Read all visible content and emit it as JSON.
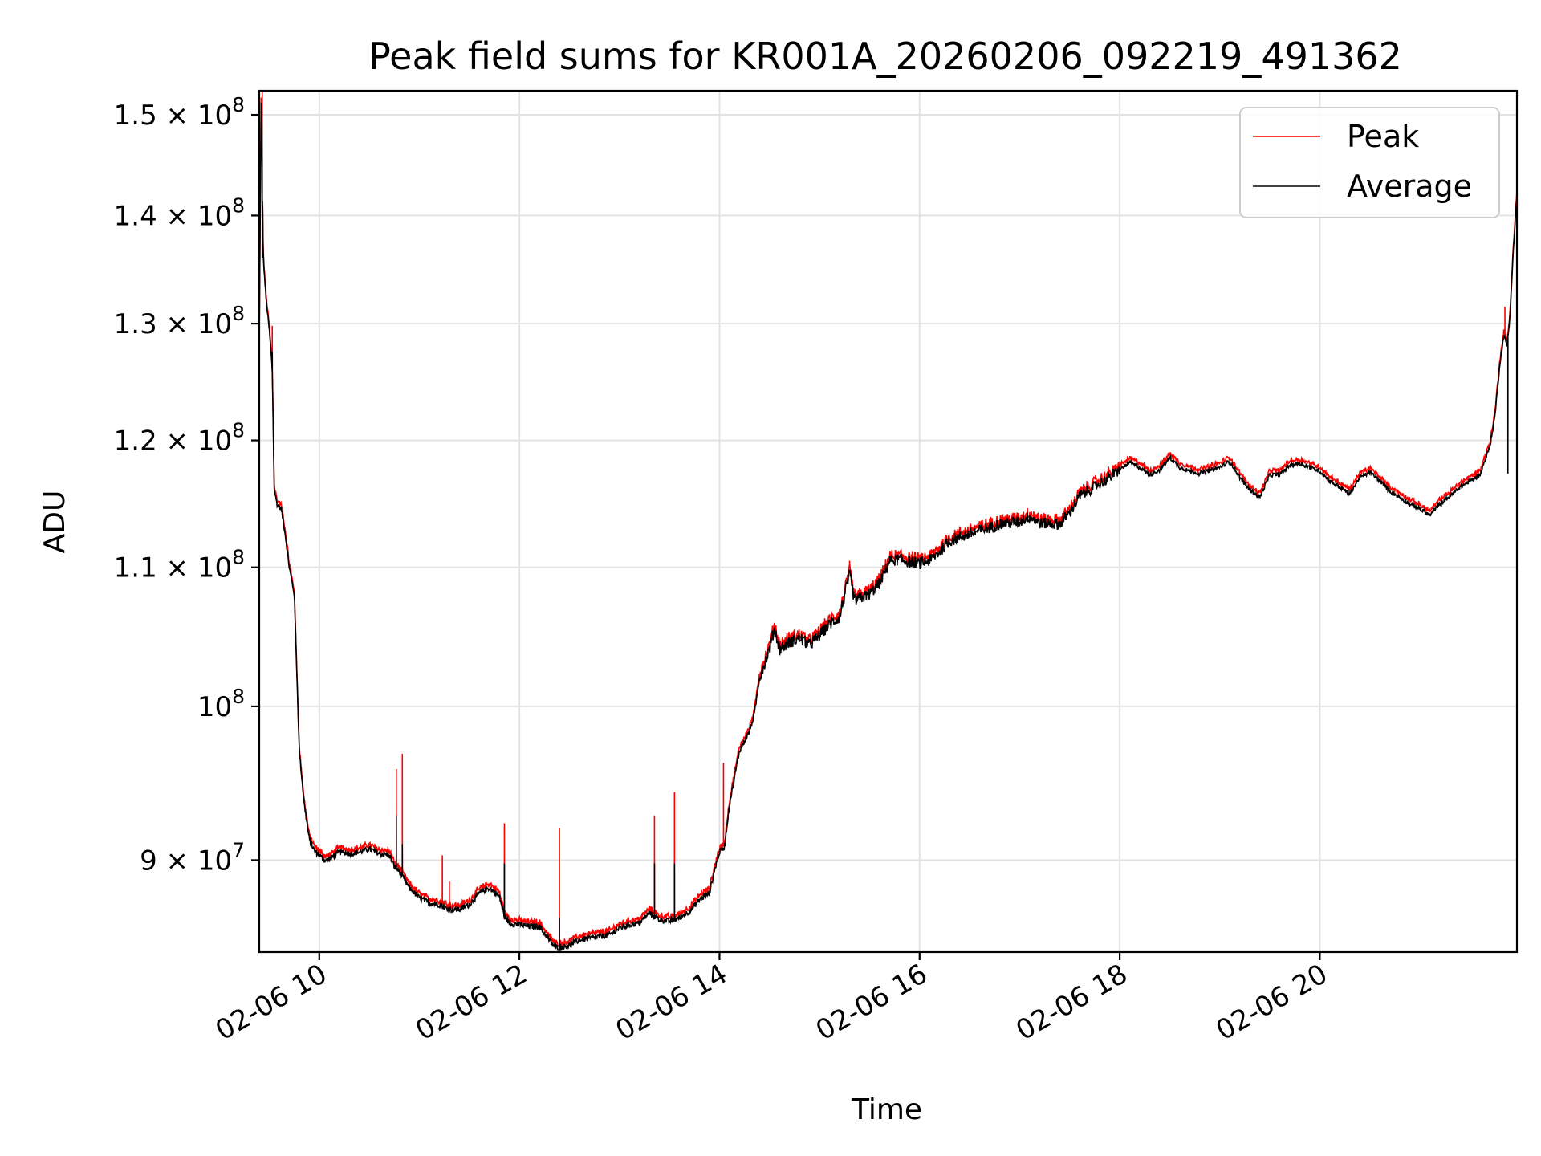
{
  "chart_data": {
    "type": "line",
    "title": "Peak field sums for KR001A_20260206_092219_491362",
    "xlabel": "Time",
    "ylabel": "ADU",
    "yscale": "log",
    "xlim": [
      9.4,
      21.97
    ],
    "ylim": [
      84500000,
      152500000
    ],
    "grid": true,
    "legend_position": "top-right",
    "x_ticks": [
      {
        "value": 10,
        "label": "02-06 10"
      },
      {
        "value": 12,
        "label": "02-06 12"
      },
      {
        "value": 14,
        "label": "02-06 14"
      },
      {
        "value": 16,
        "label": "02-06 16"
      },
      {
        "value": 18,
        "label": "02-06 18"
      },
      {
        "value": 20,
        "label": "02-06 20"
      }
    ],
    "y_ticks": [
      {
        "value": 90000000,
        "mantissa": "9",
        "times": "×",
        "base": "10",
        "exp": "7"
      },
      {
        "value": 100000000,
        "mantissa": "",
        "times": "",
        "base": "10",
        "exp": "8"
      },
      {
        "value": 110000000,
        "mantissa": "1.1",
        "times": "×",
        "base": "10",
        "exp": "8"
      },
      {
        "value": 120000000,
        "mantissa": "1.2",
        "times": "×",
        "base": "10",
        "exp": "8"
      },
      {
        "value": 130000000,
        "mantissa": "1.3",
        "times": "×",
        "base": "10",
        "exp": "8"
      },
      {
        "value": 140000000,
        "mantissa": "1.4",
        "times": "×",
        "base": "10",
        "exp": "8"
      },
      {
        "value": 150000000,
        "mantissa": "1.5",
        "times": "×",
        "base": "10",
        "exp": "8"
      }
    ],
    "series": [
      {
        "name": "Peak",
        "color": "#ff0000"
      },
      {
        "name": "Average",
        "color": "#000000"
      }
    ],
    "base_points": [
      [
        9.4,
        128.0
      ],
      [
        9.42,
        152.0
      ],
      [
        9.44,
        136.0
      ],
      [
        9.47,
        132.0
      ],
      [
        9.5,
        129.5
      ],
      [
        9.53,
        126.0
      ],
      [
        9.55,
        116.0
      ],
      [
        9.58,
        114.8
      ],
      [
        9.62,
        114.5
      ],
      [
        9.66,
        112.5
      ],
      [
        9.7,
        110.0
      ],
      [
        9.75,
        108.0
      ],
      [
        9.8,
        97.0
      ],
      [
        9.85,
        93.5
      ],
      [
        9.9,
        91.3
      ],
      [
        9.95,
        90.6
      ],
      [
        10.0,
        90.3
      ],
      [
        10.05,
        90.0
      ],
      [
        10.1,
        90.05
      ],
      [
        10.2,
        90.5
      ],
      [
        10.3,
        90.4
      ],
      [
        10.4,
        90.5
      ],
      [
        10.5,
        90.7
      ],
      [
        10.6,
        90.4
      ],
      [
        10.7,
        90.3
      ],
      [
        10.75,
        89.6
      ],
      [
        10.8,
        89.3
      ],
      [
        10.9,
        88.3
      ],
      [
        11.0,
        87.7
      ],
      [
        11.1,
        87.4
      ],
      [
        11.2,
        87.3
      ],
      [
        11.3,
        87.0
      ],
      [
        11.4,
        87.0
      ],
      [
        11.5,
        87.3
      ],
      [
        11.6,
        88.0
      ],
      [
        11.7,
        88.3
      ],
      [
        11.8,
        87.8
      ],
      [
        11.85,
        86.6
      ],
      [
        11.9,
        86.2
      ],
      [
        12.0,
        86.1
      ],
      [
        12.1,
        86.0
      ],
      [
        12.2,
        86.0
      ],
      [
        12.3,
        85.2
      ],
      [
        12.35,
        84.8
      ],
      [
        12.4,
        84.75
      ],
      [
        12.5,
        84.9
      ],
      [
        12.6,
        85.2
      ],
      [
        12.7,
        85.3
      ],
      [
        12.8,
        85.4
      ],
      [
        12.9,
        85.5
      ],
      [
        13.0,
        85.9
      ],
      [
        13.1,
        86.1
      ],
      [
        13.2,
        86.2
      ],
      [
        13.3,
        86.8
      ],
      [
        13.4,
        86.4
      ],
      [
        13.5,
        86.3
      ],
      [
        13.6,
        86.5
      ],
      [
        13.7,
        86.9
      ],
      [
        13.8,
        87.6
      ],
      [
        13.9,
        88.0
      ],
      [
        13.96,
        89.6
      ],
      [
        14.0,
        90.5
      ],
      [
        14.05,
        90.8
      ],
      [
        14.1,
        93.5
      ],
      [
        14.2,
        97.0
      ],
      [
        14.3,
        98.3
      ],
      [
        14.35,
        99.5
      ],
      [
        14.4,
        102.0
      ],
      [
        14.5,
        104.0
      ],
      [
        14.55,
        105.5
      ],
      [
        14.6,
        104.0
      ],
      [
        14.7,
        104.5
      ],
      [
        14.8,
        104.8
      ],
      [
        14.9,
        104.3
      ],
      [
        15.0,
        105.0
      ],
      [
        15.1,
        105.8
      ],
      [
        15.2,
        106.3
      ],
      [
        15.3,
        109.5
      ],
      [
        15.35,
        107.5
      ],
      [
        15.5,
        108.0
      ],
      [
        15.6,
        108.8
      ],
      [
        15.7,
        110.5
      ],
      [
        15.8,
        110.6
      ],
      [
        15.9,
        110.4
      ],
      [
        16.0,
        110.3
      ],
      [
        16.1,
        110.5
      ],
      [
        16.2,
        111.2
      ],
      [
        16.3,
        112.0
      ],
      [
        16.4,
        112.3
      ],
      [
        16.6,
        112.8
      ],
      [
        16.8,
        113.3
      ],
      [
        17.0,
        113.5
      ],
      [
        17.1,
        113.9
      ],
      [
        17.2,
        113.4
      ],
      [
        17.4,
        113.3
      ],
      [
        17.5,
        114.2
      ],
      [
        17.6,
        115.5
      ],
      [
        17.7,
        116.0
      ],
      [
        17.8,
        116.5
      ],
      [
        17.9,
        117.0
      ],
      [
        18.0,
        117.6
      ],
      [
        18.1,
        118.2
      ],
      [
        18.2,
        117.8
      ],
      [
        18.3,
        117.2
      ],
      [
        18.4,
        117.6
      ],
      [
        18.5,
        118.6
      ],
      [
        18.6,
        117.8
      ],
      [
        18.7,
        117.5
      ],
      [
        18.8,
        117.3
      ],
      [
        19.0,
        117.8
      ],
      [
        19.1,
        118.3
      ],
      [
        19.2,
        117.0
      ],
      [
        19.3,
        116.0
      ],
      [
        19.4,
        115.4
      ],
      [
        19.5,
        117.2
      ],
      [
        19.6,
        117.2
      ],
      [
        19.7,
        118.0
      ],
      [
        19.8,
        118.1
      ],
      [
        20.0,
        117.5
      ],
      [
        20.1,
        116.7
      ],
      [
        20.2,
        116.2
      ],
      [
        20.3,
        115.7
      ],
      [
        20.4,
        117.0
      ],
      [
        20.5,
        117.4
      ],
      [
        20.6,
        116.7
      ],
      [
        20.7,
        115.9
      ],
      [
        20.8,
        115.4
      ],
      [
        20.9,
        114.9
      ],
      [
        21.0,
        114.5
      ],
      [
        21.1,
        114.0
      ],
      [
        21.2,
        114.9
      ],
      [
        21.3,
        115.5
      ],
      [
        21.4,
        116.2
      ],
      [
        21.5,
        116.7
      ],
      [
        21.6,
        117.2
      ],
      [
        21.7,
        119.5
      ],
      [
        21.75,
        122.0
      ],
      [
        21.8,
        126.5
      ],
      [
        21.84,
        129.0
      ],
      [
        21.87,
        128.0
      ],
      [
        21.9,
        130.5
      ],
      [
        21.93,
        136.0
      ],
      [
        21.97,
        142.0
      ]
    ],
    "peak_spikes": [
      [
        9.43,
        152.5
      ],
      [
        9.53,
        129.8
      ],
      [
        10.77,
        95.8
      ],
      [
        10.83,
        96.8
      ],
      [
        11.23,
        90.3
      ],
      [
        11.3,
        88.7
      ],
      [
        11.85,
        92.3
      ],
      [
        12.4,
        92.0
      ],
      [
        13.35,
        92.8
      ],
      [
        13.55,
        94.3
      ],
      [
        14.04,
        96.2
      ],
      [
        15.3,
        110.5
      ],
      [
        21.85,
        131.5
      ]
    ],
    "average_spikes": [
      [
        9.43,
        136.0
      ],
      [
        9.53,
        127.5
      ],
      [
        10.77,
        92.8
      ],
      [
        10.83,
        91.0
      ],
      [
        11.85,
        89.8
      ],
      [
        12.4,
        86.5
      ],
      [
        13.35,
        89.8
      ],
      [
        13.55,
        89.8
      ],
      [
        15.3,
        109.8
      ],
      [
        21.88,
        117.3
      ]
    ]
  }
}
